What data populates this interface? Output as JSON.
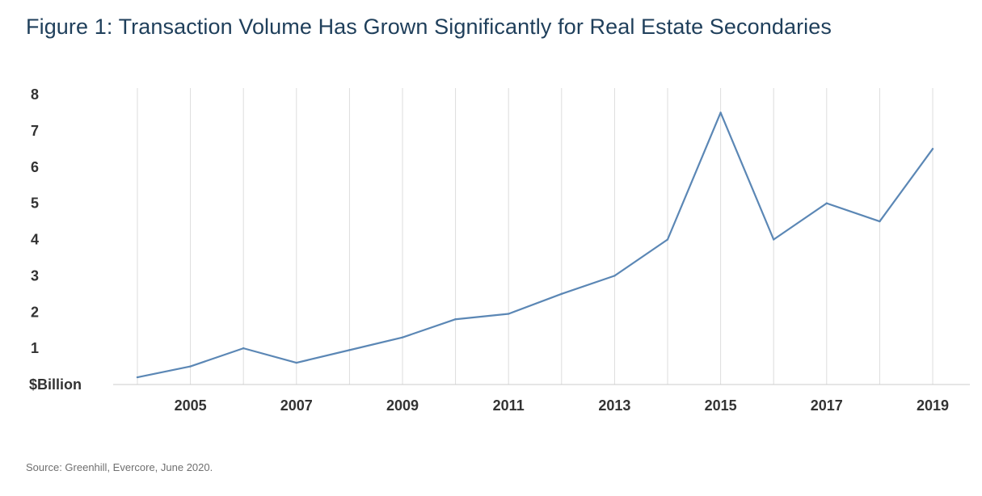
{
  "figure": {
    "title": "Figure 1: Transaction Volume Has Grown Significantly for Real Estate Secondaries",
    "source": "Source: Greenhill, Evercore, June 2020."
  },
  "colors": {
    "title": "#1f3f5b",
    "line": "#5b87b5",
    "gridline": "#dddddd",
    "axis": "#cccccc",
    "tick_text": "#333333"
  },
  "chart_data": {
    "type": "line",
    "title": "Figure 1: Transaction Volume Has Grown Significantly for Real Estate Secondaries",
    "xlabel": "",
    "ylabel": "$Billion",
    "x": [
      2004,
      2005,
      2006,
      2007,
      2008,
      2009,
      2010,
      2011,
      2012,
      2013,
      2014,
      2015,
      2016,
      2017,
      2018,
      2019
    ],
    "series": [
      {
        "values": [
          0.2,
          0.5,
          1.0,
          0.6,
          0.95,
          1.3,
          1.8,
          1.95,
          2.5,
          3.0,
          4.0,
          7.5,
          4.0,
          5.0,
          4.5,
          6.5
        ]
      }
    ],
    "x_tick_labels": [
      "2005",
      "2007",
      "2009",
      "2011",
      "2013",
      "2015",
      "2017",
      "2019"
    ],
    "y_tick_labels": [
      "$Billion",
      "1",
      "2",
      "3",
      "4",
      "5",
      "6",
      "7",
      "8"
    ],
    "xlim": [
      2003.6,
      2019.6
    ],
    "ylim": [
      0,
      8
    ],
    "grid": "vertical",
    "legend": "none"
  }
}
